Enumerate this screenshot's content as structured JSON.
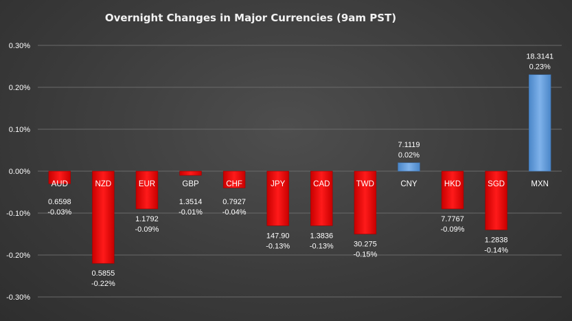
{
  "chart_data": {
    "type": "bar",
    "title": "Overnight Changes in Major Currencies (9am PST)",
    "xlabel": "",
    "ylabel": "",
    "ylim": [
      -0.3,
      0.3
    ],
    "yticks": [
      "0.30%",
      "0.20%",
      "0.10%",
      "0.00%",
      "-0.10%",
      "-0.20%",
      "-0.30%"
    ],
    "grid": true,
    "legend": "none",
    "categories": [
      "AUD",
      "NZD",
      "EUR",
      "GBP",
      "CHF",
      "JPY",
      "CAD",
      "TWD",
      "CNY",
      "HKD",
      "SGD",
      "MXN"
    ],
    "values": [
      -0.03,
      -0.22,
      -0.09,
      -0.01,
      -0.04,
      -0.13,
      -0.13,
      -0.15,
      0.02,
      -0.09,
      -0.14,
      0.23
    ],
    "data_labels": [
      {
        "rate": "0.6598",
        "change": "-0.03%"
      },
      {
        "rate": "0.5855",
        "change": "-0.22%"
      },
      {
        "rate": "1.1792",
        "change": "-0.09%"
      },
      {
        "rate": "1.3514",
        "change": "-0.01%"
      },
      {
        "rate": "0.7927",
        "change": "-0.04%"
      },
      {
        "rate": "147.90",
        "change": "-0.13%"
      },
      {
        "rate": "1.3836",
        "change": "-0.13%"
      },
      {
        "rate": "30.275",
        "change": "-0.15%"
      },
      {
        "rate": "7.1119",
        "change": "0.02%"
      },
      {
        "rate": "7.7767",
        "change": "-0.09%"
      },
      {
        "rate": "1.2838",
        "change": "-0.14%"
      },
      {
        "rate": "18.3141",
        "change": "0.23%"
      }
    ],
    "colors": {
      "negative": "#ff0000",
      "positive": "#5b9bd5"
    }
  }
}
